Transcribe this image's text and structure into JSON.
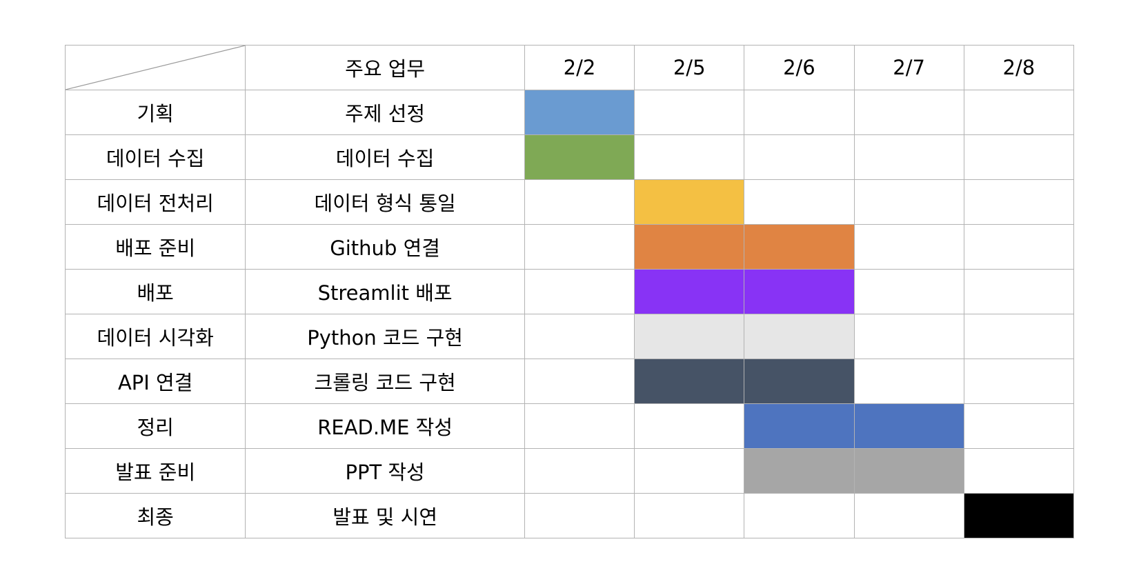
{
  "header": {
    "task_col": "주요 업무",
    "dates": [
      "2/2",
      "2/5",
      "2/6",
      "2/7",
      "2/8"
    ]
  },
  "rows": [
    {
      "stage": "기획",
      "task": "주제 선정",
      "start": 0,
      "end": 0,
      "color": "#6a9bd1"
    },
    {
      "stage": "데이터 수집",
      "task": "데이터 수집",
      "start": 0,
      "end": 0,
      "color": "#7fa955"
    },
    {
      "stage": "데이터 전처리",
      "task": "데이터 형식 통일",
      "start": 1,
      "end": 1,
      "color": "#f4c043"
    },
    {
      "stage": "배포 준비",
      "task": "Github 연결",
      "start": 1,
      "end": 2,
      "color": "#e08443"
    },
    {
      "stage": "배포",
      "task": "Streamlit 배포",
      "start": 1,
      "end": 2,
      "color": "#8833f5"
    },
    {
      "stage": "데이터 시각화",
      "task": "Python 코드 구현",
      "start": 1,
      "end": 2,
      "color": "#e6e6e6"
    },
    {
      "stage": "API 연결",
      "task": "크롤링 코드 구현",
      "start": 1,
      "end": 2,
      "color": "#465366"
    },
    {
      "stage": "정리",
      "task": "READ.ME 작성",
      "start": 2,
      "end": 3,
      "color": "#4e74bf"
    },
    {
      "stage": "발표 준비",
      "task": "PPT 작성",
      "start": 2,
      "end": 3,
      "color": "#a6a6a6"
    },
    {
      "stage": "최종",
      "task": "발표 및 시연",
      "start": 4,
      "end": 4,
      "color": "#000000"
    }
  ]
}
